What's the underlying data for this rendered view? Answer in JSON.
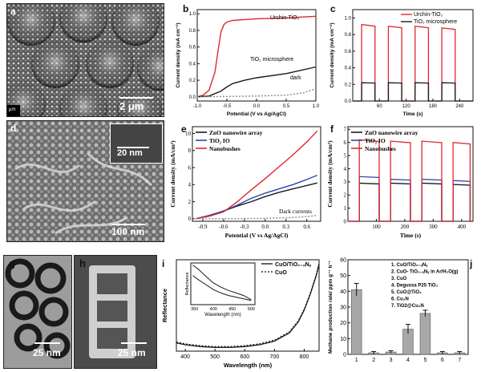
{
  "panel_labels": {
    "a": "a",
    "b": "b",
    "c": "c",
    "d": "d",
    "e": "e",
    "f": "f",
    "g": "g",
    "h": "h",
    "i": "i",
    "j": "j"
  },
  "scale_bars": {
    "a": "2 μm",
    "d_inset": "20 nm",
    "d": "100 nm",
    "g": "25 nm",
    "h": "25 nm"
  },
  "corner_tag_a": "μm",
  "colors": {
    "red": "#e0282e",
    "blue": "#2b46b0",
    "black": "#1a1a1a",
    "gray_bar": "#a8a8a8",
    "dark_dotted": "#888888"
  },
  "chart_data": [
    {
      "id": "b",
      "type": "line",
      "xlabel": "Potential (V vs Ag/AgCl)",
      "ylabel": "Current density (mA cm⁻²)",
      "xlim": [
        -1.0,
        1.0
      ],
      "ylim": [
        -0.05,
        1.05
      ],
      "xticks": [
        "-1.0",
        "-0.5",
        "0.0",
        "0.5",
        "1.0"
      ],
      "yticks": [
        "0.0",
        "0.2",
        "0.4",
        "0.6",
        "0.8",
        "1.0"
      ],
      "xtick_values": [
        -1.0,
        -0.5,
        0.0,
        0.5,
        1.0
      ],
      "ytick_values": [
        0.0,
        0.2,
        0.4,
        0.6,
        0.8,
        1.0
      ],
      "series": [
        {
          "name": "Urchin-TiO₂",
          "color": "#e0282e",
          "dash": "",
          "x": [
            -1.0,
            -0.9,
            -0.8,
            -0.7,
            -0.65,
            -0.6,
            -0.55,
            -0.5,
            -0.4,
            -0.2,
            0.0,
            0.5,
            1.0
          ],
          "y": [
            0.0,
            0.02,
            0.08,
            0.3,
            0.55,
            0.78,
            0.87,
            0.9,
            0.92,
            0.93,
            0.94,
            0.95,
            0.97
          ]
        },
        {
          "name": "TiO₂ microsphere",
          "color": "#1a1a1a",
          "dash": "",
          "x": [
            -1.0,
            -0.8,
            -0.6,
            -0.5,
            -0.4,
            -0.2,
            0.0,
            0.5,
            1.0
          ],
          "y": [
            0.0,
            0.01,
            0.07,
            0.12,
            0.16,
            0.2,
            0.23,
            0.28,
            0.36
          ]
        },
        {
          "name": "dark",
          "color": "#888888",
          "dash": "2,2",
          "x": [
            -1.0,
            0.0,
            0.5,
            0.8,
            1.0
          ],
          "y": [
            0.0,
            0.01,
            0.02,
            0.05,
            0.1
          ]
        }
      ],
      "annotations": [
        "Urchin-TiO₂",
        "TiO₂ microsphere",
        "dark"
      ]
    },
    {
      "id": "c",
      "type": "line",
      "xlabel": "Time (s)",
      "ylabel": "Current density (mA cm⁻²)",
      "xlim": [
        0,
        270
      ],
      "ylim": [
        0,
        1.1
      ],
      "xticks": [
        "60",
        "120",
        "180",
        "240"
      ],
      "yticks": [
        "0.0",
        "0.2",
        "0.4",
        "0.6",
        "0.8",
        "1.0"
      ],
      "xtick_values": [
        60,
        120,
        180,
        240
      ],
      "ytick_values": [
        0.0,
        0.2,
        0.4,
        0.6,
        0.8,
        1.0
      ],
      "on_intervals": [
        [
          20,
          50
        ],
        [
          80,
          110
        ],
        [
          140,
          170
        ],
        [
          200,
          230
        ]
      ],
      "series": [
        {
          "name": "Urchin-TiO₂",
          "color": "#e0282e",
          "levels": [
            0.92,
            0.9,
            0.9,
            0.88
          ]
        },
        {
          "name": "TiO₂ microsphere",
          "color": "#1a1a1a",
          "levels": [
            0.22,
            0.22,
            0.22,
            0.22
          ]
        }
      ]
    },
    {
      "id": "e",
      "type": "line",
      "xlabel": "Potential (V vs Ag/AgCl)",
      "ylabel": "Current density (mA/cm²)",
      "xlim": [
        -1.05,
        0.8
      ],
      "ylim": [
        -0.3,
        10.8
      ],
      "xticks": [
        "-0.9",
        "-0.6",
        "-0.3",
        "0.0",
        "0.3",
        "0.6"
      ],
      "yticks": [
        "0",
        "2",
        "4",
        "6",
        "8",
        "10"
      ],
      "xtick_values": [
        -0.9,
        -0.6,
        -0.3,
        0.0,
        0.3,
        0.6
      ],
      "ytick_values": [
        0,
        2,
        4,
        6,
        8,
        10
      ],
      "legend": [
        "ZnO nanowire array",
        "TiO₂ IO",
        "Nanobushes"
      ],
      "annotation": "Dark currents",
      "series": [
        {
          "name": "ZnO nanowire array",
          "color": "#1a1a1a",
          "dash": "",
          "x": [
            -1.0,
            -0.8,
            -0.6,
            -0.4,
            -0.2,
            0.0,
            0.2,
            0.4,
            0.6,
            0.75
          ],
          "y": [
            0.0,
            0.4,
            0.9,
            1.5,
            2.0,
            2.6,
            3.1,
            3.5,
            3.9,
            4.2
          ]
        },
        {
          "name": "TiO₂ IO",
          "color": "#2b46b0",
          "dash": "",
          "x": [
            -1.0,
            -0.8,
            -0.6,
            -0.4,
            -0.2,
            0.0,
            0.2,
            0.4,
            0.6,
            0.75
          ],
          "y": [
            0.0,
            0.4,
            0.9,
            1.6,
            2.4,
            3.0,
            3.5,
            4.0,
            4.6,
            5.1
          ]
        },
        {
          "name": "Nanobushes",
          "color": "#e0282e",
          "dash": "",
          "x": [
            -1.0,
            -0.8,
            -0.6,
            -0.4,
            -0.2,
            0.0,
            0.2,
            0.4,
            0.6,
            0.75
          ],
          "y": [
            0.0,
            0.3,
            0.8,
            2.0,
            3.4,
            4.7,
            6.1,
            7.5,
            9.0,
            10.3
          ]
        },
        {
          "name": "Dark currents",
          "color": "#888888",
          "dash": "2,2",
          "x": [
            -1.0,
            -0.5,
            0.0,
            0.3,
            0.6,
            0.75
          ],
          "y": [
            0.0,
            0.0,
            0.05,
            0.1,
            0.25,
            0.4
          ]
        }
      ]
    },
    {
      "id": "f",
      "type": "line",
      "xlabel": "Time (s)",
      "ylabel": "Current density (mA/cm²)",
      "xlim": [
        0,
        440
      ],
      "ylim": [
        0,
        7.2
      ],
      "xticks": [
        "100",
        "200",
        "300",
        "400"
      ],
      "yticks": [
        "0",
        "1",
        "2",
        "3",
        "4",
        "5",
        "6",
        "7"
      ],
      "xtick_values": [
        100,
        200,
        300,
        400
      ],
      "ytick_values": [
        0,
        1,
        2,
        3,
        4,
        5,
        6,
        7
      ],
      "legend": [
        "ZnO nanowire array",
        "TiO₂ IO",
        "Nanobushes"
      ],
      "on_intervals": [
        [
          40,
          110
        ],
        [
          150,
          220
        ],
        [
          260,
          330
        ],
        [
          370,
          430
        ]
      ],
      "series": [
        {
          "name": "ZnO nanowire array",
          "color": "#1a1a1a",
          "levels": [
            2.9,
            2.9,
            2.9,
            2.8
          ]
        },
        {
          "name": "TiO₂ IO",
          "color": "#2b46b0",
          "levels": [
            3.4,
            3.2,
            3.2,
            3.1
          ]
        },
        {
          "name": "Nanobushes",
          "color": "#e0282e",
          "levels": [
            6.2,
            6.1,
            6.1,
            6.0
          ]
        }
      ]
    },
    {
      "id": "i",
      "type": "line",
      "xlabel": "Wavelength (nm)",
      "ylabel": "Reflectance",
      "xlim": [
        370,
        850
      ],
      "ylim": [
        0,
        1
      ],
      "xticks": [
        "400",
        "500",
        "600",
        "700",
        "800"
      ],
      "xtick_values": [
        400,
        500,
        600,
        700,
        800
      ],
      "legend": [
        "CuO/TiO₂₋ₓNᵧ",
        "CuO"
      ],
      "series": [
        {
          "name": "CuO/TiO₂₋ₓNᵧ",
          "color": "#1a1a1a",
          "dash": "",
          "x": [
            370,
            400,
            450,
            500,
            550,
            600,
            650,
            700,
            750,
            780,
            800,
            820,
            840,
            850
          ],
          "y": [
            0.09,
            0.07,
            0.05,
            0.04,
            0.04,
            0.05,
            0.07,
            0.11,
            0.2,
            0.32,
            0.45,
            0.62,
            0.82,
            0.95
          ]
        },
        {
          "name": "CuO",
          "color": "#1a1a1a",
          "dash": "2,2",
          "x": [
            370,
            400,
            450,
            500,
            550,
            600,
            650,
            700,
            750,
            780,
            800,
            820,
            840,
            850
          ],
          "y": [
            0.1,
            0.08,
            0.06,
            0.05,
            0.05,
            0.06,
            0.08,
            0.12,
            0.21,
            0.33,
            0.46,
            0.63,
            0.83,
            0.96
          ]
        }
      ],
      "inset": {
        "xlabel": "Wavelength (nm)",
        "ylabel": "Reflectance",
        "xlim": [
          340,
          510
        ],
        "ylim": [
          0,
          1
        ],
        "xticks": [
          "350",
          "400",
          "450",
          "500"
        ],
        "xtick_values": [
          350,
          400,
          450,
          500
        ],
        "series": [
          {
            "name": "CuO/TiO₂₋ₓNᵧ",
            "color": "#1a1a1a",
            "dash": "",
            "x": [
              345,
              360,
              380,
              400,
              420,
              440,
              460,
              480,
              500
            ],
            "y": [
              0.95,
              0.85,
              0.68,
              0.52,
              0.42,
              0.34,
              0.28,
              0.22,
              0.12
            ]
          },
          {
            "name": "CuO",
            "color": "#1a1a1a",
            "dash": "",
            "x": [
              345,
              360,
              380,
              400,
              420,
              440,
              460,
              480,
              500
            ],
            "y": [
              0.7,
              0.6,
              0.48,
              0.36,
              0.28,
              0.22,
              0.18,
              0.14,
              0.1
            ]
          }
        ]
      }
    },
    {
      "id": "j",
      "type": "bar",
      "ylabel": "Methane production rate/ ppm g⁻¹ h⁻¹",
      "categories": [
        "1",
        "2",
        "3",
        "4",
        "5",
        "6",
        "7"
      ],
      "values": [
        41,
        1,
        1.5,
        16,
        26,
        1,
        1
      ],
      "errors": [
        4,
        0.8,
        0.8,
        3,
        2,
        0.8,
        0.8
      ],
      "ylim": [
        0,
        60
      ],
      "yticks": [
        "0",
        "10",
        "20",
        "30",
        "40",
        "50",
        "60"
      ],
      "ytick_values": [
        0,
        10,
        20,
        30,
        40,
        50,
        60
      ],
      "legend": [
        "1. CuO/TiO₂₋ₓNᵧ",
        "2. CuO- TiO₂₋ₓNᵧ in Ar/H₂O(g)",
        "3. CuO",
        "4. Degussa P25 TiO₂",
        "5. CuO@TiO₂",
        "6. Cu₃N",
        "7. TiO2@Cu₃N"
      ]
    }
  ]
}
